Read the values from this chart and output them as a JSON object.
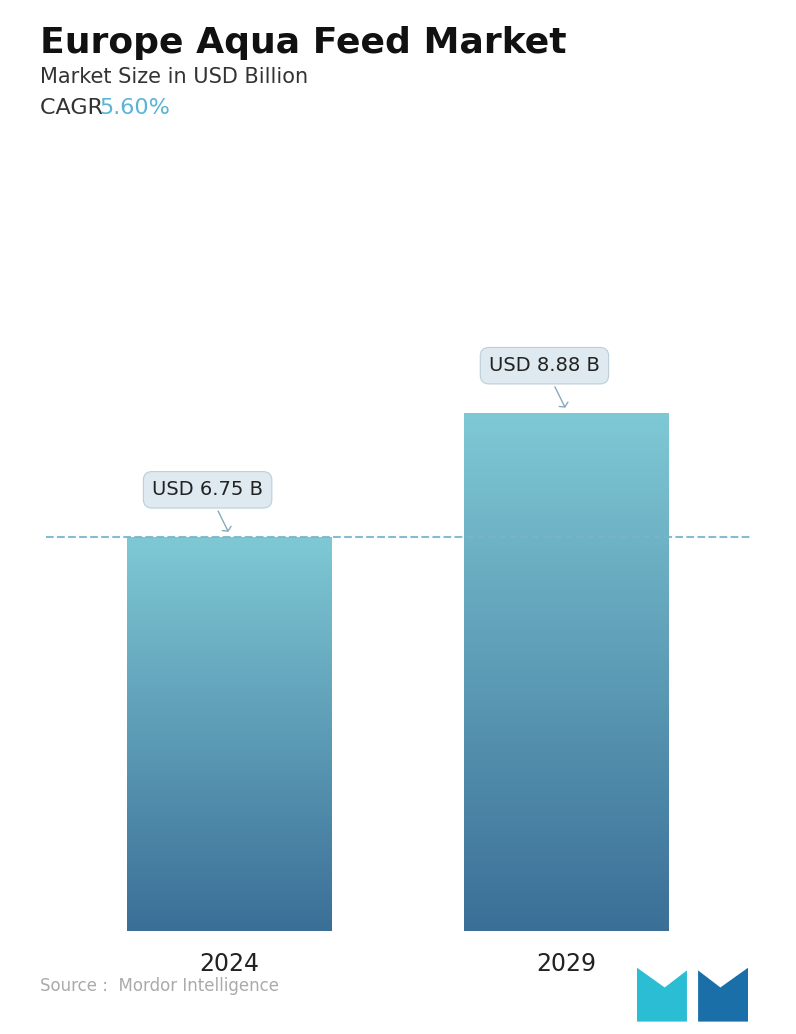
{
  "title": "Europe Aqua Feed Market",
  "subtitle": "Market Size in USD Billion",
  "cagr_label": "CAGR ",
  "cagr_value": "5.60%",
  "cagr_color": "#5ab4d6",
  "years": [
    "2024",
    "2029"
  ],
  "values": [
    6.75,
    8.88
  ],
  "labels": [
    "USD 6.75 B",
    "USD 8.88 B"
  ],
  "bar_top_color": "#7ec8d4",
  "bar_bottom_color": "#3a6e96",
  "dashed_line_color": "#7ab4cc",
  "source_text": "Source :  Mordor Intelligence",
  "source_color": "#aaaaaa",
  "background_color": "#ffffff",
  "title_fontsize": 26,
  "subtitle_fontsize": 15,
  "cagr_fontsize": 16,
  "xlabel_fontsize": 17,
  "label_fontsize": 14,
  "ylim": [
    0,
    11
  ],
  "bar_width": 0.28,
  "x_positions": [
    0.27,
    0.73
  ]
}
